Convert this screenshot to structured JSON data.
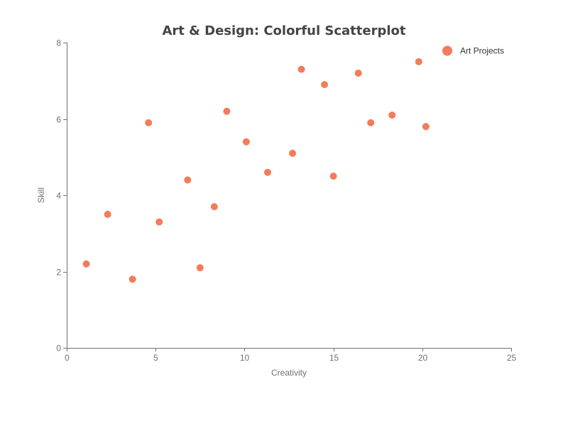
{
  "chart_data": {
    "type": "scatter",
    "title": "Art & Design: Colorful Scatterplot",
    "xlabel": "Creativity",
    "ylabel": "Skill",
    "xlim": [
      0,
      25
    ],
    "ylim": [
      0,
      8
    ],
    "x_ticks": [
      "0",
      "5",
      "10",
      "15",
      "20",
      "25"
    ],
    "y_ticks": [
      "0",
      "2",
      "4",
      "6",
      "8"
    ],
    "grid": false,
    "legend_position": "top-right",
    "series": [
      {
        "name": "Art Projects",
        "color": "#f47b5b",
        "points": [
          {
            "x": 1.1,
            "y": 2.2
          },
          {
            "x": 2.3,
            "y": 3.5
          },
          {
            "x": 3.7,
            "y": 1.8
          },
          {
            "x": 4.6,
            "y": 5.9
          },
          {
            "x": 5.2,
            "y": 3.3
          },
          {
            "x": 6.8,
            "y": 4.4
          },
          {
            "x": 7.5,
            "y": 2.1
          },
          {
            "x": 8.3,
            "y": 3.7
          },
          {
            "x": 9.0,
            "y": 6.2
          },
          {
            "x": 10.1,
            "y": 5.4
          },
          {
            "x": 11.3,
            "y": 4.6
          },
          {
            "x": 12.7,
            "y": 5.1
          },
          {
            "x": 13.2,
            "y": 7.3
          },
          {
            "x": 14.5,
            "y": 6.9
          },
          {
            "x": 15.0,
            "y": 4.5
          },
          {
            "x": 16.4,
            "y": 7.2
          },
          {
            "x": 17.1,
            "y": 5.9
          },
          {
            "x": 18.3,
            "y": 6.1
          },
          {
            "x": 19.8,
            "y": 7.5
          },
          {
            "x": 20.2,
            "y": 5.8
          }
        ]
      }
    ]
  }
}
